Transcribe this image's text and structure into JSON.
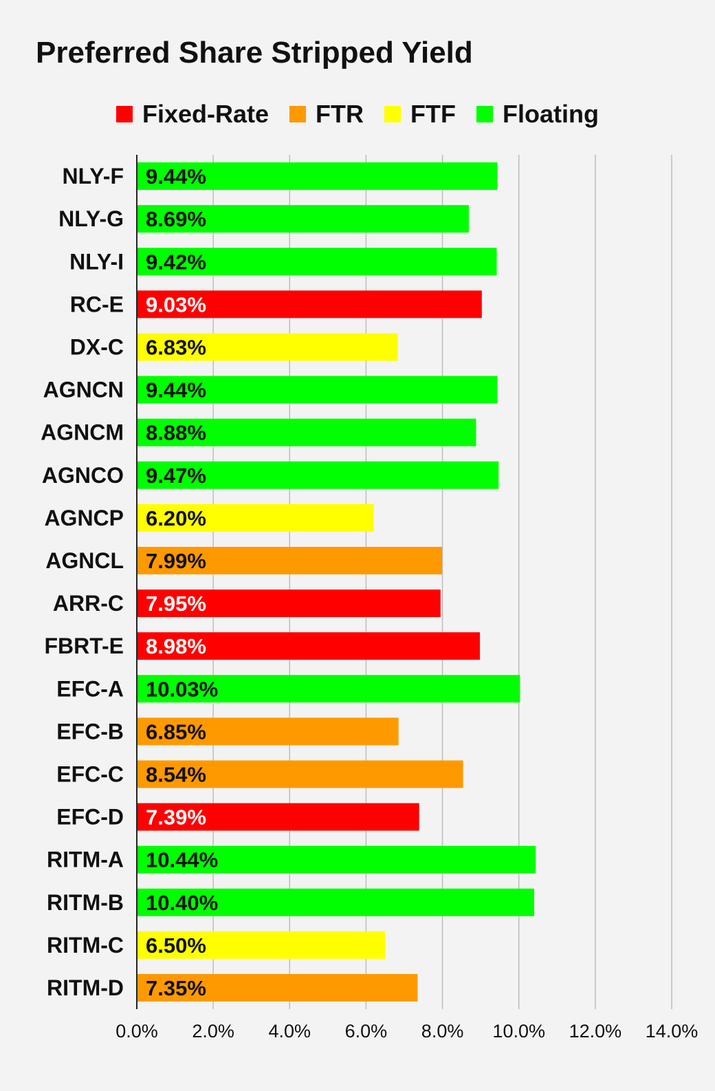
{
  "chart_data": {
    "type": "bar",
    "orientation": "horizontal",
    "title": "Preferred Share Stripped Yield",
    "legend_position": "top",
    "legend": [
      {
        "name": "Fixed-Rate",
        "color": "#ff0000"
      },
      {
        "name": "FTR",
        "color": "#ff9900"
      },
      {
        "name": "FTF",
        "color": "#ffff00"
      },
      {
        "name": "Floating",
        "color": "#00ff00"
      }
    ],
    "categories": [
      "NLY-F",
      "NLY-G",
      "NLY-I",
      "RC-E",
      "DX-C",
      "AGNCN",
      "AGNCM",
      "AGNCO",
      "AGNCP",
      "AGNCL",
      "ARR-C",
      "FBRT-E",
      "EFC-A",
      "EFC-B",
      "EFC-C",
      "EFC-D",
      "RITM-A",
      "RITM-B",
      "RITM-C",
      "RITM-D"
    ],
    "values": [
      9.44,
      8.69,
      9.42,
      9.03,
      6.83,
      9.44,
      8.88,
      9.47,
      6.2,
      7.99,
      7.95,
      8.98,
      10.03,
      6.85,
      8.54,
      7.39,
      10.44,
      10.4,
      6.5,
      7.35
    ],
    "value_labels": [
      "9.44%",
      "8.69%",
      "9.42%",
      "9.03%",
      "6.83%",
      "9.44%",
      "8.88%",
      "9.47%",
      "6.20%",
      "7.99%",
      "7.95%",
      "8.98%",
      "10.03%",
      "6.85%",
      "8.54%",
      "7.39%",
      "10.44%",
      "10.40%",
      "6.50%",
      "7.35%"
    ],
    "bar_types": [
      "Floating",
      "Floating",
      "Floating",
      "Fixed-Rate",
      "FTF",
      "Floating",
      "Floating",
      "Floating",
      "FTF",
      "FTR",
      "Fixed-Rate",
      "Fixed-Rate",
      "Floating",
      "FTR",
      "FTR",
      "Fixed-Rate",
      "Floating",
      "Floating",
      "FTF",
      "FTR"
    ],
    "xlim": [
      0,
      14
    ],
    "x_ticks": [
      0,
      2,
      4,
      6,
      8,
      10,
      12,
      14
    ],
    "x_tick_labels": [
      "0.0%",
      "2.0%",
      "4.0%",
      "6.0%",
      "8.0%",
      "10.0%",
      "12.0%",
      "14.0%"
    ],
    "grid": true
  }
}
